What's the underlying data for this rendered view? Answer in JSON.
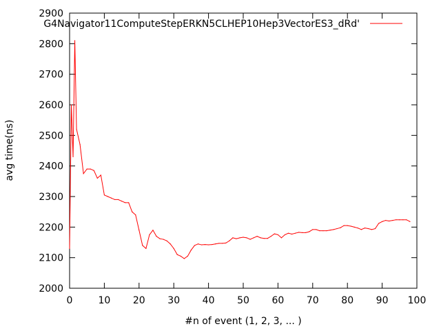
{
  "chart_data": {
    "type": "line",
    "title": "",
    "xlabel": "#n of event (1, 2, 3, ... )",
    "ylabel": "avg time(ns)",
    "xlim": [
      0,
      100
    ],
    "ylim": [
      2000,
      2900
    ],
    "xticks": [
      0,
      10,
      20,
      30,
      40,
      50,
      60,
      70,
      80,
      90,
      100
    ],
    "yticks": [
      2000,
      2100,
      2200,
      2300,
      2400,
      2500,
      2600,
      2700,
      2800,
      2900
    ],
    "xtick_labels": [
      "0",
      "10",
      "20",
      "30",
      "40",
      "50",
      "60",
      "70",
      "80",
      "90",
      "100"
    ],
    "ytick_labels": [
      "2000",
      "2100",
      "2200",
      "2300",
      "2400",
      "2500",
      "2600",
      "2700",
      "2800",
      "2900"
    ],
    "grid": false,
    "legend_position": "top-right",
    "series": [
      {
        "name": "G4Navigator11ComputeStepERKN5CLHEP10Hep3VectorES3_dRd'",
        "color": "#ff0000",
        "x": [
          0,
          0.5,
          1,
          1.5,
          2,
          3,
          4,
          5,
          6,
          7,
          8,
          9,
          10,
          11,
          12,
          13,
          14,
          15,
          16,
          17,
          18,
          19,
          20,
          21,
          22,
          23,
          24,
          25,
          26,
          27,
          28,
          29,
          30,
          31,
          32,
          33,
          34,
          35,
          36,
          37,
          38,
          39,
          40,
          41,
          42,
          43,
          44,
          45,
          46,
          47,
          48,
          49,
          50,
          51,
          52,
          53,
          54,
          55,
          56,
          57,
          58,
          59,
          60,
          61,
          62,
          63,
          64,
          65,
          66,
          67,
          68,
          69,
          70,
          71,
          72,
          73,
          74,
          75,
          76,
          77,
          78,
          79,
          80,
          81,
          82,
          83,
          84,
          85,
          86,
          87,
          88,
          89,
          90,
          91,
          92,
          93,
          94,
          95,
          96,
          97,
          98
        ],
        "y": [
          2130,
          2600,
          2430,
          2810,
          2520,
          2470,
          2375,
          2390,
          2390,
          2385,
          2360,
          2370,
          2305,
          2300,
          2295,
          2290,
          2290,
          2285,
          2280,
          2280,
          2250,
          2240,
          2190,
          2140,
          2130,
          2175,
          2190,
          2170,
          2162,
          2160,
          2155,
          2145,
          2130,
          2110,
          2105,
          2097,
          2105,
          2125,
          2140,
          2145,
          2142,
          2143,
          2142,
          2143,
          2145,
          2147,
          2147,
          2148,
          2155,
          2165,
          2162,
          2165,
          2167,
          2165,
          2160,
          2165,
          2170,
          2165,
          2163,
          2163,
          2170,
          2178,
          2175,
          2165,
          2175,
          2180,
          2177,
          2180,
          2183,
          2182,
          2182,
          2185,
          2192,
          2192,
          2188,
          2188,
          2188,
          2190,
          2192,
          2195,
          2198,
          2205,
          2205,
          2203,
          2200,
          2197,
          2192,
          2197,
          2195,
          2192,
          2195,
          2212,
          2218,
          2222,
          2220,
          2222,
          2224,
          2224,
          2224,
          2224,
          2218
        ]
      }
    ]
  }
}
